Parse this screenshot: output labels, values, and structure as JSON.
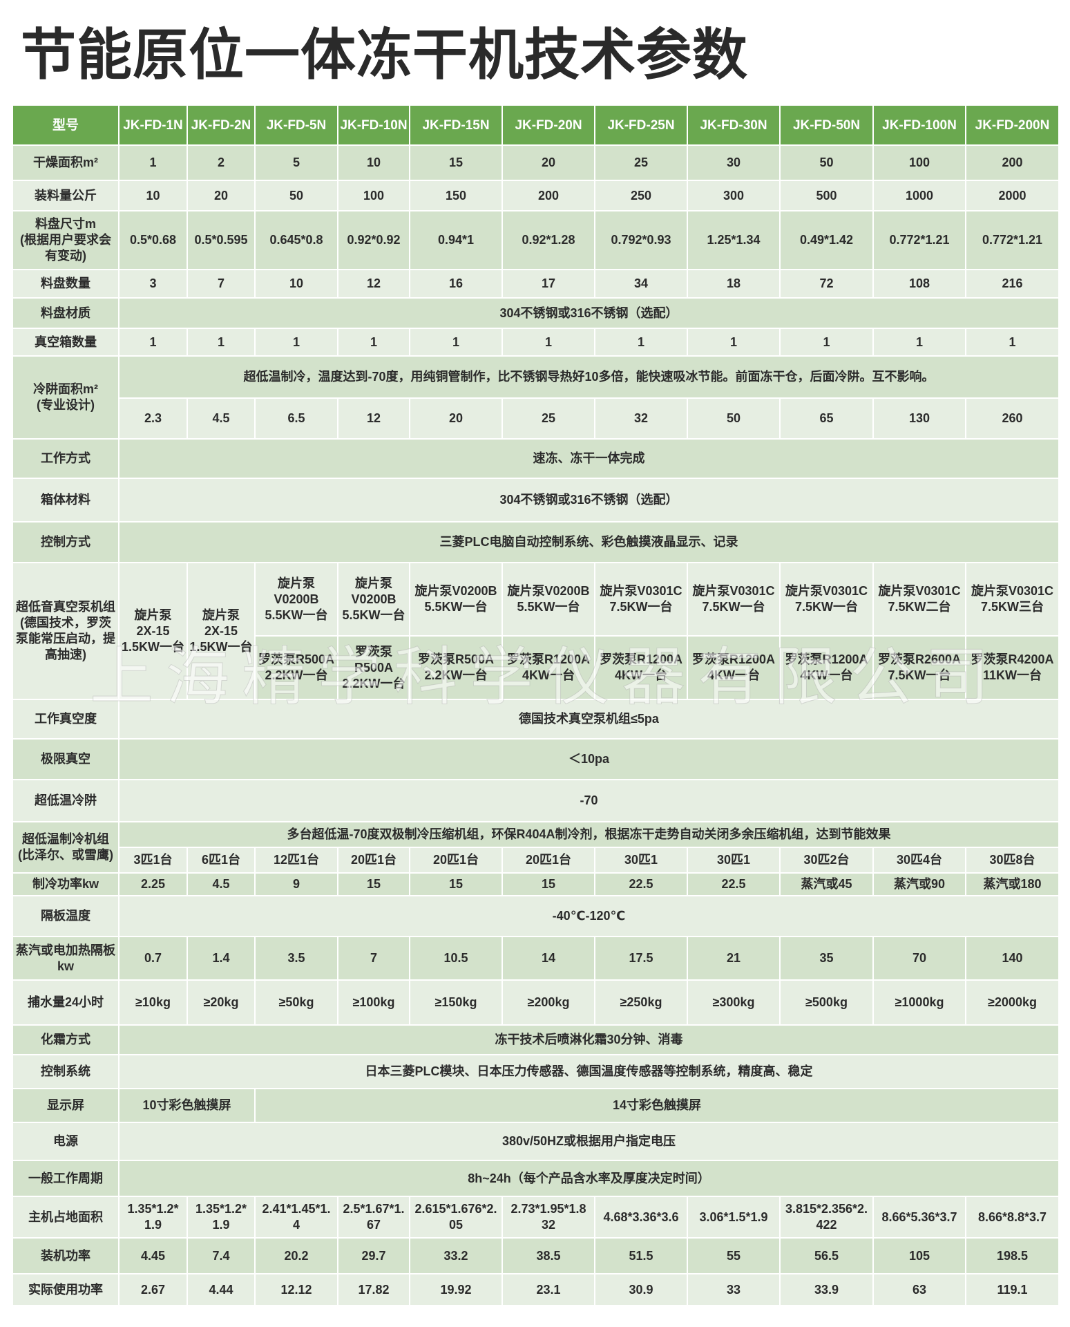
{
  "title": "节能原位一体冻干机技术参数",
  "watermark": "上海精学科学仪器有限公司",
  "colors": {
    "header": "#6aa84f",
    "row_dark": "#d3e2cb",
    "row_light": "#e6eee2"
  },
  "header": [
    "型号",
    "JK-FD-1N",
    "JK-FD-2N",
    "JK-FD-5N",
    "JK-FD-10N",
    "JK-FD-15N",
    "JK-FD-20N",
    "JK-FD-25N",
    "JK-FD-30N",
    "JK-FD-50N",
    "JK-FD-100N",
    "JK-FD-200N"
  ],
  "rows": [
    {
      "label": "干燥面积m²",
      "sub": [
        [
          "1",
          "2",
          "5",
          "10",
          "15",
          "20",
          "25",
          "30",
          "50",
          "100",
          "200"
        ]
      ]
    },
    {
      "label": "装料量公斤",
      "sub": [
        [
          "10",
          "20",
          "50",
          "100",
          "150",
          "200",
          "250",
          "300",
          "500",
          "1000",
          "2000"
        ]
      ]
    },
    {
      "label": "料盘尺寸m\n(根据用户要求会有变动)",
      "sub": [
        [
          "0.5*0.68",
          "0.5*0.595",
          "0.645*0.8",
          "0.92*0.92",
          "0.94*1",
          "0.92*1.28",
          "0.792*0.93",
          "1.25*1.34",
          "0.49*1.42",
          "0.772*1.21",
          "0.772*1.21"
        ]
      ]
    },
    {
      "label": "料盘数量",
      "sub": [
        [
          "3",
          "7",
          "10",
          "12",
          "16",
          "17",
          "34",
          "18",
          "72",
          "108",
          "216"
        ]
      ]
    },
    {
      "label": "料盘材质",
      "sub": [
        [
          {
            "t": "304不锈钢或316不锈钢（选配）",
            "span": 11
          }
        ]
      ]
    },
    {
      "label": "真空箱数量",
      "sub": [
        [
          "1",
          "1",
          "1",
          "1",
          "1",
          "1",
          "1",
          "1",
          "1",
          "1",
          "1"
        ]
      ]
    },
    {
      "label": "冷阱面积m²\n(专业设计)",
      "sub": [
        [
          {
            "t": "超低温制冷，温度达到-70度，用纯铜管制作，比不锈钢导热好10多倍，能快速吸冰节能。前面冻干仓，后面冷阱。互不影响。",
            "span": 11
          }
        ],
        [
          "2.3",
          "4.5",
          "6.5",
          "12",
          "20",
          "25",
          "32",
          "50",
          "65",
          "130",
          "260"
        ]
      ]
    },
    {
      "label": "工作方式",
      "sub": [
        [
          {
            "t": "速冻、冻干一体完成",
            "span": 11
          }
        ]
      ]
    },
    {
      "label": "箱体材料",
      "sub": [
        [
          {
            "t": "304不锈钢或316不锈钢（选配）",
            "span": 11
          }
        ]
      ]
    },
    {
      "label": "控制方式",
      "sub": [
        [
          {
            "t": "三菱PLC电脑自动控制系统、彩色触摸液晶显示、记录",
            "span": 11
          }
        ]
      ]
    },
    {
      "label": "超低音真空泵机组\n(德国技术，罗茨泵能常压启动，提高抽速)",
      "sub": [
        [
          {
            "t": "旋片泵\n2X-15\n1.5KW一台",
            "rowspan": 2
          },
          {
            "t": "旋片泵\n2X-15\n1.5KW一台",
            "rowspan": 2
          },
          "旋片泵\nV0200B\n5.5KW一台",
          "旋片泵\nV0200B\n5.5KW一台",
          "旋片泵V0200B\n5.5KW一台",
          "旋片泵V0200B\n5.5KW一台",
          "旋片泵V0301C\n7.5KW一台",
          "旋片泵V0301C\n7.5KW一台",
          "旋片泵V0301C\n7.5KW一台",
          "旋片泵V0301C\n7.5KW二台",
          "旋片泵V0301C\n7.5KW三台"
        ],
        [
          "罗茨泵R500A\n2.2KW一台",
          "罗茨泵\nR500A\n2.2KW一台",
          "罗茨泵R500A\n2.2KW一台",
          "罗茨泵R1200A\n4KW一台",
          "罗茨泵R1200A\n4KW一台",
          "罗茨泵R1200A\n4KW一台",
          "罗茨泵R1200A\n4KW一台",
          "罗茨泵R2600A\n7.5KW一台",
          "罗茨泵R4200A\n11KW一台"
        ]
      ]
    },
    {
      "label": "工作真空度",
      "sub": [
        [
          {
            "t": "德国技术真空泵机组≤5pa",
            "span": 11
          }
        ]
      ]
    },
    {
      "label": "极限真空",
      "sub": [
        [
          {
            "t": "＜10pa",
            "span": 11
          }
        ]
      ]
    },
    {
      "label": "超低温冷阱",
      "sub": [
        [
          {
            "t": "-70",
            "span": 11
          }
        ]
      ]
    },
    {
      "label": "超低温制冷机组\n(比泽尔、或雪鹰)",
      "sub": [
        [
          {
            "t": "多台超低温-70度双极制冷压缩机组，环保R404A制冷剂，根据冻干走势自动关闭多余压缩机组，达到节能效果",
            "span": 11
          }
        ],
        [
          "3匹1台",
          "6匹1台",
          "12匹1台",
          "20匹1台",
          "20匹1台",
          "20匹1台",
          "30匹1",
          "30匹1",
          "30匹2台",
          "30匹4台",
          "30匹8台"
        ]
      ]
    },
    {
      "label": "制冷功率kw",
      "sub": [
        [
          "2.25",
          "4.5",
          "9",
          "15",
          "15",
          "15",
          "22.5",
          "22.5",
          "蒸汽或45",
          "蒸汽或90",
          "蒸汽或180"
        ]
      ]
    },
    {
      "label": "隔板温度",
      "sub": [
        [
          {
            "t": "-40℃-120℃",
            "span": 11
          }
        ]
      ]
    },
    {
      "label": "蒸汽或电加热隔板\nkw",
      "sub": [
        [
          "0.7",
          "1.4",
          "3.5",
          "7",
          "10.5",
          "14",
          "17.5",
          "21",
          "35",
          "70",
          "140"
        ]
      ]
    },
    {
      "label": "捕水量24小时",
      "sub": [
        [
          "≥10kg",
          "≥20kg",
          "≥50kg",
          "≥100kg",
          "≥150kg",
          "≥200kg",
          "≥250kg",
          "≥300kg",
          "≥500kg",
          "≥1000kg",
          "≥2000kg"
        ]
      ]
    },
    {
      "label": "化霜方式",
      "sub": [
        [
          {
            "t": "冻干技术后喷淋化霜30分钟、消毒",
            "span": 11
          }
        ]
      ]
    },
    {
      "label": "控制系统",
      "sub": [
        [
          {
            "t": "日本三菱PLC模块、日本压力传感器、德国温度传感器等控制系统，精度高、稳定",
            "span": 11
          }
        ]
      ]
    },
    {
      "label": "显示屏",
      "sub": [
        [
          {
            "t": "10寸彩色触摸屏",
            "span": 2
          },
          {
            "t": "14寸彩色触摸屏",
            "span": 9
          }
        ]
      ]
    },
    {
      "label": "电源",
      "sub": [
        [
          {
            "t": "380v/50HZ或根据用户指定电压",
            "span": 11
          }
        ]
      ]
    },
    {
      "label": "一般工作周期",
      "sub": [
        [
          {
            "t": "8h~24h（每个产品含水率及厚度决定时间）",
            "span": 11
          }
        ]
      ]
    },
    {
      "label": "主机占地面积",
      "sub": [
        [
          "1.35*1.2*\n1.9",
          "1.35*1.2*\n1.9",
          "2.41*1.45*1.\n4",
          "2.5*1.67*1.\n67",
          "2.615*1.676*2.\n05",
          "2.73*1.95*1.8\n32",
          "4.68*3.36*3.6\n ",
          "3.06*1.5*1.9",
          "3.815*2.356*2.\n422",
          "8.66*5.36*3.7",
          "8.66*8.8*3.7"
        ]
      ]
    },
    {
      "label": "装机功率",
      "sub": [
        [
          "4.45",
          "7.4",
          "20.2",
          "29.7",
          "33.2",
          "38.5",
          "51.5",
          "55",
          "56.5",
          "105",
          "198.5"
        ]
      ]
    },
    {
      "label": "实际使用功率",
      "sub": [
        [
          "2.67",
          "4.44",
          "12.12",
          "17.82",
          "19.92",
          "23.1",
          "30.9",
          "33",
          "33.9",
          "63",
          "119.1"
        ]
      ]
    }
  ]
}
